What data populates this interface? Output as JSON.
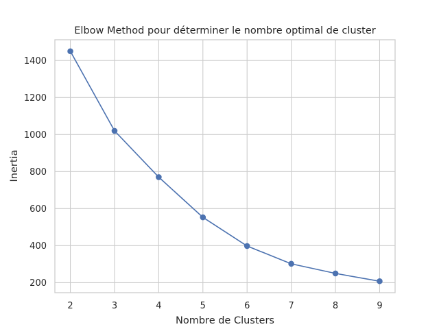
{
  "chart_data": {
    "type": "line",
    "title": "Elbow Method pour déterminer le nombre optimal de cluster",
    "xlabel": "Nombre de Clusters",
    "ylabel": "Inertia",
    "x": [
      2,
      3,
      4,
      5,
      6,
      7,
      8,
      9
    ],
    "series": [
      {
        "values": [
          1450,
          1020,
          770,
          553,
          398,
          302,
          250,
          208
        ]
      }
    ],
    "xlim": [
      1.65,
      9.35
    ],
    "ylim": [
      146,
      1512
    ],
    "xticks": [
      2,
      3,
      4,
      5,
      6,
      7,
      8,
      9
    ],
    "yticks": [
      200,
      400,
      600,
      800,
      1000,
      1200,
      1400
    ],
    "grid": true,
    "line_color": "#4c72b0",
    "grid_color": "#cccccc",
    "text_color": "#262626"
  }
}
